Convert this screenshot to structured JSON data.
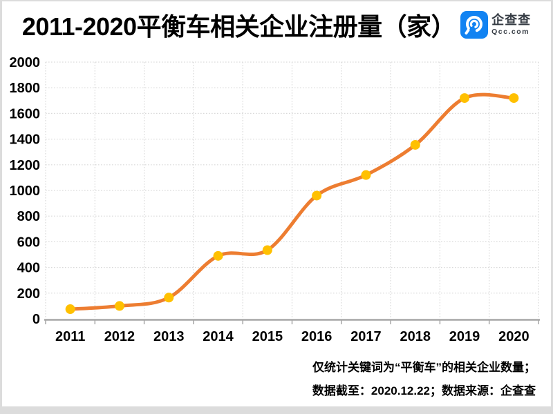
{
  "header": {
    "title": "2011-2020平衡车相关企业注册量（家）",
    "logo": {
      "name": "企查查",
      "domain": "Qcc.com",
      "brand_blue": "#1283f2",
      "wordmark_color": "#363c44"
    }
  },
  "chart_data": {
    "type": "line",
    "title": "2011-2020平衡车相关企业注册量（家）",
    "categories": [
      "2011",
      "2012",
      "2013",
      "2014",
      "2015",
      "2016",
      "2017",
      "2018",
      "2019",
      "2020"
    ],
    "series": [
      {
        "name": "平衡车相关企业注册量",
        "values": [
          75,
          100,
          165,
          490,
          535,
          960,
          1120,
          1355,
          1720,
          1720
        ]
      }
    ],
    "xlabel": "",
    "ylabel": "",
    "ylim": [
      0,
      2000
    ],
    "ytick_interval": 200,
    "grid": "dotted",
    "legend": "none",
    "smooth": true,
    "colors": {
      "line": "#ED7D31",
      "marker": "#FFC000",
      "gridline": "#D9D9D9",
      "axis": "#A6A6A6",
      "tick_label": "#000000"
    }
  },
  "footer": {
    "line1": "仅统计关键词为“平衡车”的相关企业数量；",
    "line2": "数据截至：2020.12.22；数据来源：企查查"
  }
}
